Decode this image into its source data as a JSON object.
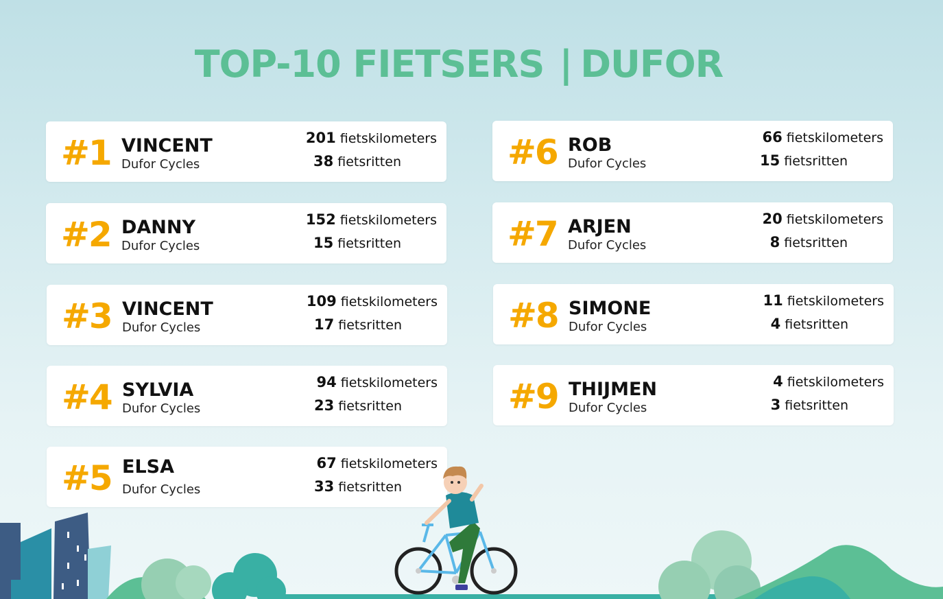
{
  "title": {
    "main": "TOP-10 FIETSERS",
    "separator": "|",
    "brand": "DUFOR"
  },
  "colors": {
    "title": "#5cbf95",
    "rank": "#f5a800",
    "card": "#ffffff"
  },
  "entries": [
    {
      "rank": "#1",
      "name": "VINCENT",
      "company": "Dufor Cycles",
      "km": "201",
      "km_label": "fietskilometers",
      "rides": "38",
      "rides_label": "fietsritten"
    },
    {
      "rank": "#2",
      "name": "DANNY",
      "company": "Dufor Cycles",
      "km": "152",
      "km_label": "fietskilometers",
      "rides": "15",
      "rides_label": "fietsritten"
    },
    {
      "rank": "#3",
      "name": "VINCENT",
      "company": "Dufor Cycles",
      "km": "109",
      "km_label": "fietskilometers",
      "rides": "17",
      "rides_label": "fietsritten"
    },
    {
      "rank": "#4",
      "name": "SYLVIA",
      "company": "Dufor Cycles",
      "km": "94",
      "km_label": "fietskilometers",
      "rides": "23",
      "rides_label": "fietsritten"
    },
    {
      "rank": "#5",
      "name": "ELSA",
      "company": "Dufor Cycles",
      "km": "67",
      "km_label": "fietskilometers",
      "rides": "33",
      "rides_label": "fietsritten"
    },
    {
      "rank": "#6",
      "name": "ROB",
      "company": "Dufor Cycles",
      "km": "66",
      "km_label": "fietskilometers",
      "rides": "15",
      "rides_label": "fietsritten"
    },
    {
      "rank": "#7",
      "name": "ARJEN",
      "company": "Dufor Cycles",
      "km": "20",
      "km_label": "fietskilometers",
      "rides": "8",
      "rides_label": "fietsritten"
    },
    {
      "rank": "#8",
      "name": "SIMONE",
      "company": "Dufor Cycles",
      "km": "11",
      "km_label": "fietskilometers",
      "rides": "4",
      "rides_label": "fietsritten"
    },
    {
      "rank": "#9",
      "name": "THIJMEN",
      "company": "Dufor Cycles",
      "km": "4",
      "km_label": "fietskilometers",
      "rides": "3",
      "rides_label": "fietsritten"
    }
  ],
  "illustration": {
    "icons": [
      "cyclist-icon",
      "bicycle-icon",
      "building-icon",
      "tree-icon",
      "hill-icon"
    ]
  }
}
